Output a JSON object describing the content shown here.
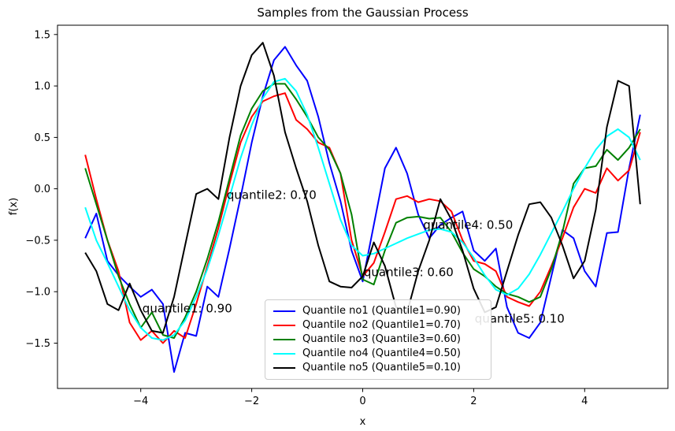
{
  "figure": {
    "title": "Samples from the Gaussian Process",
    "xlabel": "x",
    "ylabel": "f(x)"
  },
  "chart_data": {
    "type": "line",
    "title": "Samples from the Gaussian Process",
    "xlabel": "x",
    "ylabel": "f(x)",
    "xlim": [
      -5.5,
      5.5
    ],
    "ylim": [
      -1.94,
      1.59
    ],
    "grid": false,
    "legend_position": "lower center",
    "x_ticks": {
      "values": [
        -4,
        -2,
        0,
        2,
        4
      ],
      "labels": [
        "−4",
        "−2",
        "0",
        "2",
        "4"
      ]
    },
    "y_ticks": {
      "values": [
        1.5,
        1.0,
        0.5,
        0.0,
        -0.5,
        -1.0,
        -1.5
      ],
      "labels": [
        "1.5",
        "1.0",
        "0.5",
        "0.0",
        "−0.5",
        "−1.0",
        "−1.5"
      ]
    },
    "x": [
      -5.0,
      -4.8,
      -4.6,
      -4.4,
      -4.2,
      -4.0,
      -3.8,
      -3.6,
      -3.4,
      -3.2,
      -3.0,
      -2.8,
      -2.6,
      -2.4,
      -2.2,
      -2.0,
      -1.8,
      -1.6,
      -1.4,
      -1.2,
      -1.0,
      -0.8,
      -0.6,
      -0.4,
      -0.2,
      0.0,
      0.2,
      0.4,
      0.6,
      0.8,
      1.0,
      1.2,
      1.4,
      1.6,
      1.8,
      2.0,
      2.2,
      2.4,
      2.6,
      2.8,
      3.0,
      3.2,
      3.4,
      3.6,
      3.8,
      4.0,
      4.2,
      4.4,
      4.6,
      4.8,
      5.0
    ],
    "series": [
      {
        "name": "Quantile no1 (Quantile1=0.90)",
        "color": "#0000ff",
        "values": [
          -0.48,
          -0.24,
          -0.7,
          -0.84,
          -0.95,
          -1.05,
          -0.98,
          -1.12,
          -1.78,
          -1.4,
          -1.43,
          -0.95,
          -1.05,
          -0.58,
          -0.08,
          0.45,
          0.9,
          1.25,
          1.38,
          1.2,
          1.05,
          0.7,
          0.25,
          -0.12,
          -0.6,
          -0.9,
          -0.35,
          0.2,
          0.4,
          0.15,
          -0.25,
          -0.48,
          -0.35,
          -0.28,
          -0.22,
          -0.6,
          -0.7,
          -0.58,
          -1.15,
          -1.4,
          -1.45,
          -1.3,
          -0.85,
          -0.4,
          -0.48,
          -0.8,
          -0.95,
          -0.43,
          -0.42,
          0.2,
          0.72
        ]
      },
      {
        "name": "Quantile no2 (Quantile1=0.70)",
        "color": "#ff0000",
        "values": [
          0.33,
          -0.1,
          -0.5,
          -0.8,
          -1.3,
          -1.47,
          -1.38,
          -1.5,
          -1.38,
          -1.45,
          -1.12,
          -0.75,
          -0.38,
          0.05,
          0.45,
          0.7,
          0.85,
          0.9,
          0.93,
          0.67,
          0.58,
          0.45,
          0.4,
          0.15,
          -0.5,
          -0.85,
          -0.72,
          -0.42,
          -0.1,
          -0.07,
          -0.13,
          -0.1,
          -0.12,
          -0.22,
          -0.5,
          -0.7,
          -0.73,
          -0.8,
          -1.05,
          -1.1,
          -1.14,
          -1.0,
          -0.75,
          -0.48,
          -0.18,
          0.0,
          -0.04,
          0.2,
          0.08,
          0.18,
          0.55
        ]
      },
      {
        "name": "Quantile no3 (Quantile3=0.60)",
        "color": "#008000",
        "values": [
          0.2,
          -0.15,
          -0.5,
          -0.85,
          -1.12,
          -1.35,
          -1.2,
          -1.42,
          -1.45,
          -1.25,
          -1.0,
          -0.68,
          -0.32,
          0.1,
          0.52,
          0.78,
          0.95,
          1.02,
          1.02,
          0.87,
          0.7,
          0.5,
          0.38,
          0.15,
          -0.25,
          -0.88,
          -0.93,
          -0.6,
          -0.33,
          -0.28,
          -0.27,
          -0.29,
          -0.28,
          -0.42,
          -0.62,
          -0.78,
          -0.85,
          -0.95,
          -1.02,
          -1.05,
          -1.1,
          -1.05,
          -0.78,
          -0.42,
          0.05,
          0.2,
          0.22,
          0.38,
          0.28,
          0.4,
          0.58
        ]
      },
      {
        "name": "Quantile no4 (Quantile4=0.50)",
        "color": "#00ffff",
        "values": [
          -0.18,
          -0.5,
          -0.72,
          -0.95,
          -1.18,
          -1.35,
          -1.45,
          -1.47,
          -1.42,
          -1.28,
          -1.05,
          -0.78,
          -0.45,
          -0.08,
          0.3,
          0.62,
          0.88,
          1.04,
          1.07,
          0.95,
          0.72,
          0.4,
          0.05,
          -0.3,
          -0.55,
          -0.65,
          -0.63,
          -0.58,
          -0.53,
          -0.48,
          -0.44,
          -0.4,
          -0.39,
          -0.42,
          -0.52,
          -0.67,
          -0.84,
          -0.98,
          -1.03,
          -0.97,
          -0.83,
          -0.64,
          -0.43,
          -0.22,
          0.0,
          0.2,
          0.38,
          0.51,
          0.58,
          0.5,
          0.28
        ]
      },
      {
        "name": "Quantile no5 (Quantile5=0.10)",
        "color": "#000000",
        "values": [
          -0.62,
          -0.8,
          -1.12,
          -1.18,
          -0.92,
          -1.18,
          -1.38,
          -1.4,
          -1.05,
          -0.55,
          -0.05,
          0.0,
          -0.1,
          0.5,
          1.0,
          1.3,
          1.42,
          1.1,
          0.55,
          0.2,
          -0.12,
          -0.55,
          -0.9,
          -0.95,
          -0.96,
          -0.85,
          -0.52,
          -0.75,
          -1.15,
          -1.2,
          -0.8,
          -0.5,
          -0.1,
          -0.3,
          -0.6,
          -0.97,
          -1.2,
          -1.15,
          -0.8,
          -0.45,
          -0.15,
          -0.13,
          -0.28,
          -0.55,
          -0.87,
          -0.7,
          -0.2,
          0.6,
          1.05,
          1.0,
          -0.15
        ]
      }
    ],
    "annotations": [
      {
        "text": "quantile1: 0.90",
        "color": "#0000ff",
        "x": -3.97,
        "y": -1.2
      },
      {
        "text": "quantile2: 0.70",
        "color": "#ff0000",
        "x": -2.45,
        "y": -0.1
      },
      {
        "text": "quantile3: 0.60",
        "color": "#008000",
        "x": 0.02,
        "y": -0.85
      },
      {
        "text": "quantile4: 0.50",
        "color": "#00ffff",
        "x": 1.09,
        "y": -0.39
      },
      {
        "text": "quantile5: 0.10",
        "color": "#000000",
        "x": 2.02,
        "y": -1.3
      }
    ]
  }
}
